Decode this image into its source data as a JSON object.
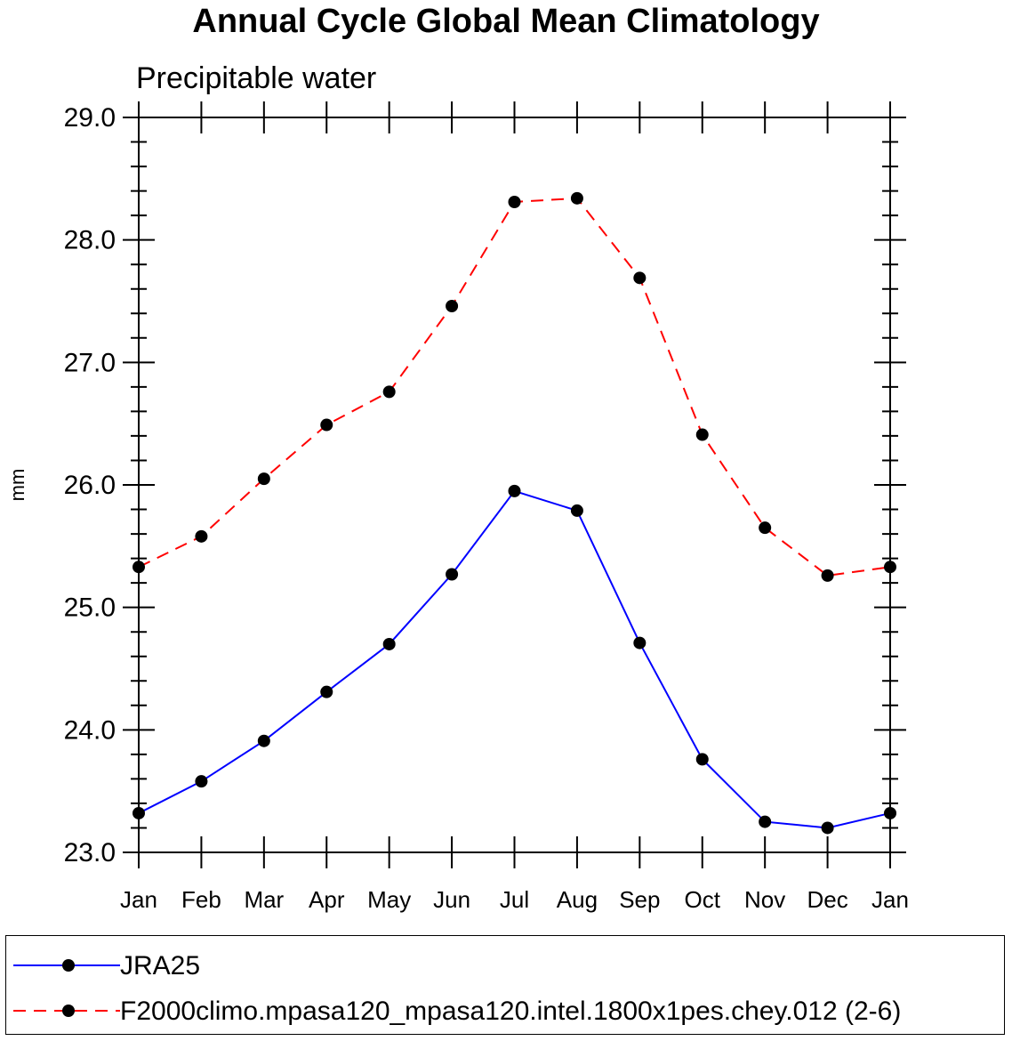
{
  "chart_data": {
    "type": "line",
    "title": "Annual Cycle Global Mean Climatology",
    "subtitle": "Precipitable water",
    "ylabel": "mm",
    "xlabel": "",
    "ylim": [
      23.0,
      29.0
    ],
    "yticks": [
      "23.0",
      "24.0",
      "25.0",
      "26.0",
      "27.0",
      "28.0",
      "29.0"
    ],
    "categories": [
      "Jan",
      "Feb",
      "Mar",
      "Apr",
      "May",
      "Jun",
      "Jul",
      "Aug",
      "Sep",
      "Oct",
      "Nov",
      "Dec",
      "Jan"
    ],
    "series": [
      {
        "name": "JRA25",
        "color": "#0000ff",
        "dash": "solid",
        "values": [
          23.32,
          23.58,
          23.91,
          24.31,
          24.7,
          25.27,
          25.95,
          25.79,
          24.71,
          23.76,
          23.25,
          23.2,
          23.32
        ]
      },
      {
        "name": "F2000climo.mpasa120_mpasa120.intel.1800x1pes.chey.012 (2-6)",
        "color": "#ff0000",
        "dash": "dashed",
        "values": [
          25.33,
          25.58,
          26.05,
          26.49,
          26.76,
          27.46,
          28.31,
          28.34,
          27.69,
          26.41,
          25.65,
          25.26,
          25.33
        ]
      }
    ],
    "legend_position": "bottom"
  }
}
